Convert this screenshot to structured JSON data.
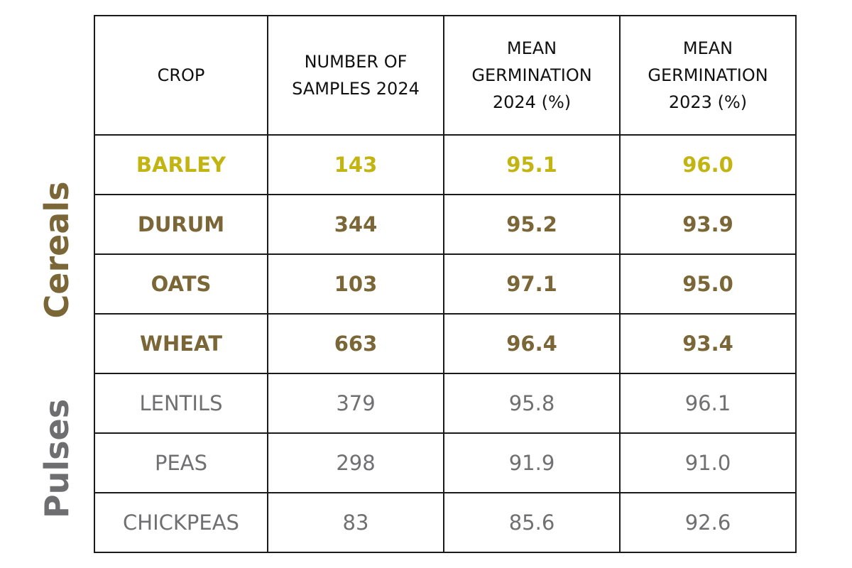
{
  "chart_data": {
    "type": "table",
    "title": "",
    "columns": [
      "CROP",
      "NUMBER OF\nSAMPLES 2024",
      "MEAN\nGERMINATION\n2024 (%)",
      "MEAN\nGERMINATION\n2023 (%)"
    ],
    "groups": [
      {
        "name": "Cereals",
        "color": "#7a6636",
        "rows": [
          0,
          1,
          2,
          3
        ]
      },
      {
        "name": "Pulses",
        "color": "#6e6e70",
        "rows": [
          4,
          5,
          6
        ]
      }
    ],
    "rows": [
      {
        "crop": "BARLEY",
        "samples_2024": "143",
        "germination_2024": "95.1",
        "germination_2023": "96.0",
        "color": "#c2b512",
        "group": "Cereals"
      },
      {
        "crop": "DURUM",
        "samples_2024": "344",
        "germination_2024": "95.2",
        "germination_2023": "93.9",
        "color": "#7a6636",
        "group": "Cereals"
      },
      {
        "crop": "OATS",
        "samples_2024": "103",
        "germination_2024": "97.1",
        "germination_2023": "95.0",
        "color": "#7a6636",
        "group": "Cereals"
      },
      {
        "crop": "WHEAT",
        "samples_2024": "663",
        "germination_2024": "96.4",
        "germination_2023": "93.4",
        "color": "#7a6636",
        "group": "Cereals"
      },
      {
        "crop": "LENTILS",
        "samples_2024": "379",
        "germination_2024": "95.8",
        "germination_2023": "96.1",
        "color": "#707072",
        "group": "Pulses"
      },
      {
        "crop": "PEAS",
        "samples_2024": "298",
        "germination_2024": "91.9",
        "germination_2023": "91.0",
        "color": "#707072",
        "group": "Pulses"
      },
      {
        "crop": "CHICKPEAS",
        "samples_2024": "83",
        "germination_2024": "85.6",
        "germination_2023": "92.6",
        "color": "#707072",
        "group": "Pulses"
      }
    ]
  }
}
